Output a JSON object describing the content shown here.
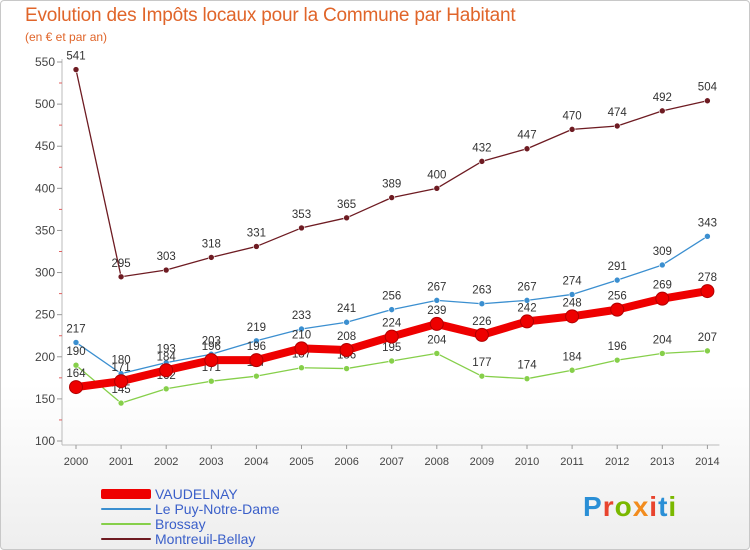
{
  "header": {
    "title": "Evolution des Impôts locaux pour la Commune par Habitant",
    "subtitle": "(en € et par an)"
  },
  "logo": {
    "letters": [
      "P",
      "r",
      "o",
      "x",
      "i",
      "t",
      "i"
    ],
    "colors": [
      "#2a8fd6",
      "#e8442e",
      "#7ab800",
      "#f28c1e",
      "#e8442e",
      "#2a8fd6",
      "#7ab800"
    ]
  },
  "chart_data": {
    "type": "line",
    "title": "Evolution des Impôts locaux pour la Commune par Habitant",
    "ylabel": "(en € et par an)",
    "xlabel": "",
    "ylim": [
      100,
      550
    ],
    "yticks": [
      "100",
      "150",
      "200",
      "250",
      "300",
      "350",
      "400",
      "450",
      "500",
      "550"
    ],
    "categories": [
      "2000",
      "2001",
      "2002",
      "2003",
      "2004",
      "2005",
      "2006",
      "2007",
      "2008",
      "2009",
      "2010",
      "2011",
      "2012",
      "2013",
      "2014"
    ],
    "grid": false,
    "series": [
      {
        "name": "Montreuil-Bellay",
        "color": "#6e1b22",
        "values": [
          541,
          295,
          303,
          318,
          331,
          353,
          365,
          389,
          400,
          432,
          447,
          470,
          474,
          492,
          504
        ],
        "labels": [
          "541",
          "295",
          "303",
          "318",
          "331",
          "353",
          "365",
          "389",
          "400",
          "432",
          "447",
          "470",
          "474",
          "492",
          "504"
        ]
      },
      {
        "name": "Le Puy-Notre-Dame",
        "color": "#3b8fd0",
        "values": [
          217,
          180,
          193,
          203,
          219,
          233,
          241,
          256,
          267,
          263,
          267,
          274,
          291,
          309,
          343
        ],
        "labels": [
          "217",
          "180",
          "193",
          "203",
          "219",
          "233",
          "241",
          "256",
          "267",
          "263",
          "267",
          "274",
          "291",
          "309",
          "343"
        ]
      },
      {
        "name": "Brossay",
        "color": "#86cf4a",
        "values": [
          190,
          145,
          162,
          171,
          177,
          187,
          186,
          195,
          204,
          177,
          174,
          184,
          196,
          204,
          207
        ],
        "labels": [
          "190",
          "145",
          "162",
          "171",
          "177",
          "187",
          "186",
          "195",
          "204",
          "177",
          "174",
          "184",
          "196",
          "204",
          "207"
        ]
      },
      {
        "name": "VAUDELNAY",
        "color": "#ee0000",
        "values": [
          164,
          171,
          184,
          196,
          196,
          210,
          208,
          224,
          239,
          226,
          242,
          248,
          256,
          269,
          278
        ],
        "labels": [
          "164",
          "171",
          "184",
          "196",
          "196",
          "210",
          "208",
          "224",
          "239",
          "226",
          "242",
          "248",
          "256",
          "269",
          "278"
        ]
      }
    ],
    "legend": [
      "VAUDELNAY",
      "Le Puy-Notre-Dame",
      "Brossay",
      "Montreuil-Bellay"
    ],
    "legend_position": "bottom-left"
  }
}
